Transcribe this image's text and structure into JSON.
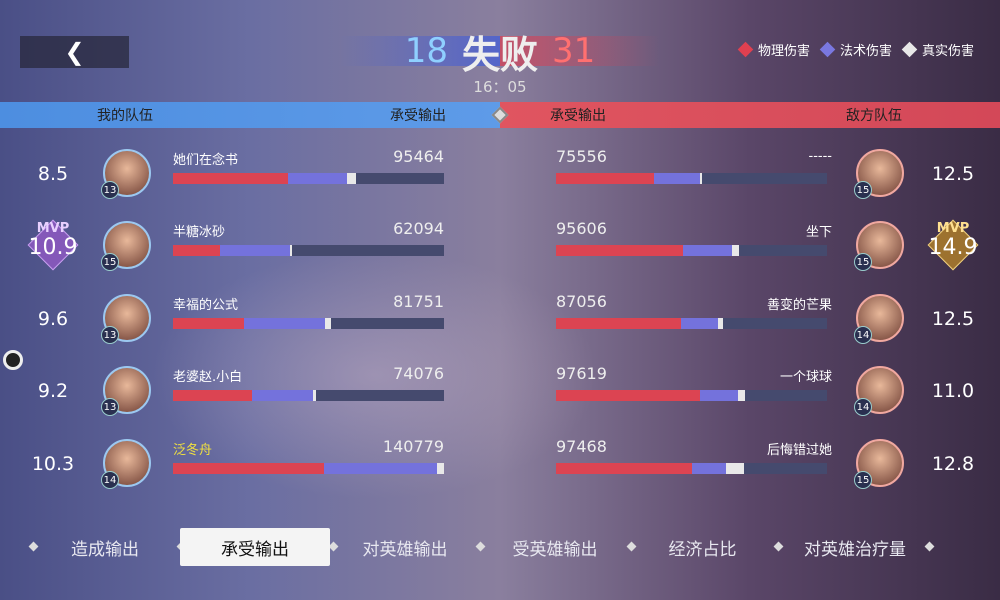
{
  "header": {
    "back_icon": "chevron-left-icon",
    "my_kills": "18",
    "result": "失败",
    "enemy_kills": "31",
    "time": "16：05"
  },
  "legend": [
    {
      "label": "物理伤害",
      "color": "#e04050"
    },
    {
      "label": "法术伤害",
      "color": "#7a78e0"
    },
    {
      "label": "真实伤害",
      "color": "#e8e8e8"
    }
  ],
  "columns": {
    "my_team": "我的队伍",
    "my_metric": "承受输出",
    "enemy_metric": "承受输出",
    "enemy_team": "敌方队伍"
  },
  "my_team": [
    {
      "score": "8.5",
      "level": "13",
      "name": "她们在念书",
      "value": "95464",
      "physical": 0.424,
      "magic": 0.218,
      "true": 0.033,
      "mvp": false
    },
    {
      "score": "10.9",
      "level": "15",
      "name": "半糖冰砂",
      "value": "62094",
      "physical": 0.173,
      "magic": 0.258,
      "true": 0.007,
      "mvp": true,
      "mvp_label": "MVP"
    },
    {
      "score": "9.6",
      "level": "13",
      "name": "幸福的公式",
      "value": "81751",
      "physical": 0.262,
      "magic": 0.299,
      "true": 0.022,
      "mvp": false
    },
    {
      "score": "9.2",
      "level": "13",
      "name": "老婆赵.小白",
      "value": "74076",
      "physical": 0.292,
      "magic": 0.225,
      "true": 0.011,
      "mvp": false
    },
    {
      "score": "10.3",
      "level": "14",
      "name": "泛冬舟",
      "value": "140779",
      "physical": 0.557,
      "magic": 0.417,
      "true": 0.026,
      "mvp": false,
      "highlight": "#f0e040"
    }
  ],
  "enemy_team": [
    {
      "score": "12.5",
      "level": "15",
      "name": "-----",
      "value": "75556",
      "physical": 0.36,
      "magic": 0.173,
      "true": 0.004,
      "mvp": false
    },
    {
      "score": "14.9",
      "level": "15",
      "name": "坐下",
      "value": "95606",
      "physical": 0.47,
      "magic": 0.18,
      "true": 0.026,
      "mvp": true,
      "mvp_label": "MVP"
    },
    {
      "score": "12.5",
      "level": "14",
      "name": "善变的芒果",
      "value": "87056",
      "physical": 0.46,
      "magic": 0.136,
      "true": 0.022,
      "mvp": false
    },
    {
      "score": "11.0",
      "level": "14",
      "name": "一个球球",
      "value": "97619",
      "physical": 0.53,
      "magic": 0.14,
      "true": 0.026,
      "mvp": false
    },
    {
      "score": "12.8",
      "level": "15",
      "name": "后悔错过她",
      "value": "97468",
      "physical": 0.5,
      "magic": 0.129,
      "true": 0.063,
      "mvp": false
    }
  ],
  "tabs": [
    {
      "label": "造成输出"
    },
    {
      "label": "承受输出",
      "active": true
    },
    {
      "label": "对英雄输出"
    },
    {
      "label": "受英雄输出"
    },
    {
      "label": "经济占比"
    },
    {
      "label": "对英雄治疗量"
    }
  ]
}
